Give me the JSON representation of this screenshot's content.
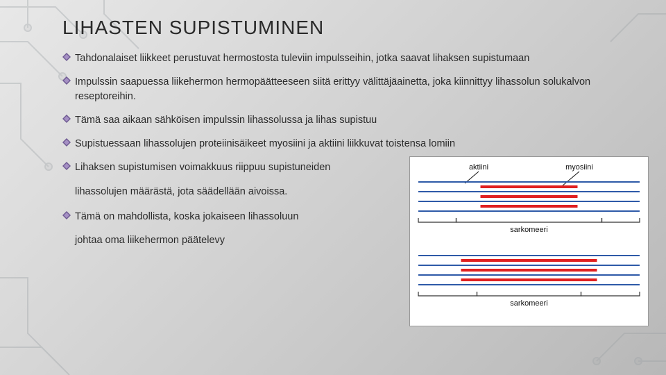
{
  "title": "LIHASTEN SUPISTUMINEN",
  "bullets": {
    "b1": "Tahdonalaiset liikkeet perustuvat hermostosta tuleviin impulsseihin, jotka saavat lihaksen supistumaan",
    "b2": "Impulssin saapuessa liikehermon hermopäätteeseen siitä erittyy välittäjäainetta, joka kiinnittyy lihassolun solukalvon reseptoreihin.",
    "b3": "Tämä saa aikaan sähköisen impulssin lihassolussa ja lihas supistuu",
    "b4": "Supistuessaan lihassolujen proteiinisäikeet myosiini ja aktiini liikkuvat toistensa lomiin",
    "b5": "Lihaksen supistumisen voimakkuus riippuu supistuneiden",
    "b5c": "lihassolujen määrästä, jota säädellään aivoissa.",
    "b6": "Tämä on mahdollista, koska jokaiseen lihassoluun",
    "b6c": "johtaa oma liikehermon päätelevy"
  },
  "figure": {
    "labels": {
      "aktiini": "aktiini",
      "myosiini": "myosiini",
      "sarkomeeri": "sarkomeeri"
    },
    "colors": {
      "actin": "#2e5aa8",
      "myosin": "#e02020",
      "label": "#111111",
      "bracket": "#333333",
      "pointer": "#111111"
    },
    "bg": "#ffffff",
    "label_fontsize": 11
  },
  "bullet_color": "#6e5a92",
  "circuit_color": "#9aa0a4"
}
